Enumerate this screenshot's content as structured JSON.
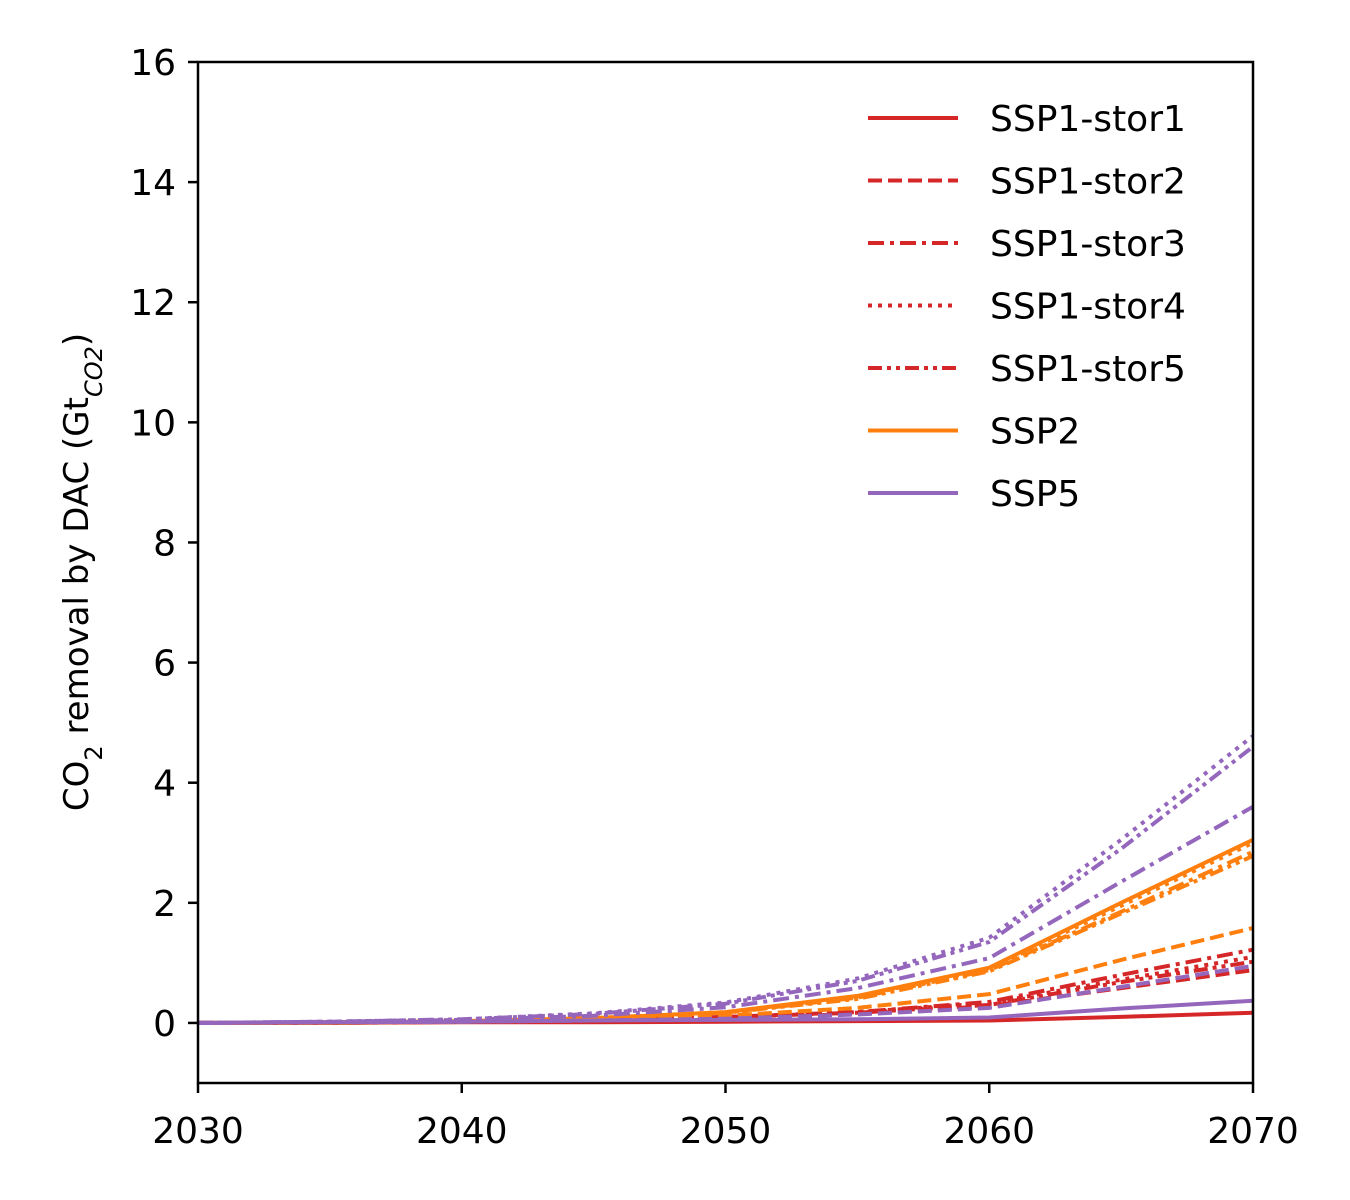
{
  "chart_data": {
    "type": "line",
    "title": "",
    "xlabel": "",
    "ylabel_parts": {
      "main": "CO",
      "sub1": "2",
      "mid": " removal by DAC (Gt",
      "sub2": "CO2",
      "end": ")"
    },
    "xlim": [
      2030,
      2070
    ],
    "ylim": [
      -1,
      16
    ],
    "x_ticks": [
      2030,
      2040,
      2050,
      2060,
      2070
    ],
    "y_ticks": [
      0,
      2,
      4,
      6,
      8,
      10,
      12,
      14,
      16
    ],
    "grid": false,
    "legend_position": "top-right",
    "x": [
      2030,
      2035,
      2040,
      2045,
      2050,
      2055,
      2060,
      2065,
      2070
    ],
    "series": [
      {
        "group": "SSP1",
        "style": "solid",
        "color": "#d62728",
        "name": "SSP1-stor1",
        "values": [
          0.0,
          0.0,
          0.01,
          0.01,
          0.02,
          0.03,
          0.04,
          0.1,
          0.17
        ]
      },
      {
        "group": "SSP1",
        "style": "dashed",
        "color": "#d62728",
        "name": "SSP1-stor2",
        "values": [
          0.0,
          0.0,
          0.02,
          0.04,
          0.08,
          0.15,
          0.28,
          0.58,
          0.88
        ]
      },
      {
        "group": "SSP1",
        "style": "dashdot",
        "color": "#d62728",
        "name": "SSP1-stor3",
        "values": [
          0.0,
          0.0,
          0.02,
          0.05,
          0.1,
          0.18,
          0.35,
          0.8,
          1.22
        ]
      },
      {
        "group": "SSP1",
        "style": "dotted",
        "color": "#d62728",
        "name": "SSP1-stor4",
        "values": [
          0.0,
          0.0,
          0.02,
          0.05,
          0.1,
          0.18,
          0.33,
          0.72,
          1.1
        ]
      },
      {
        "group": "SSP1",
        "style": "dashdotdot",
        "color": "#d62728",
        "name": "SSP1-stor5",
        "values": [
          0.0,
          0.0,
          0.02,
          0.05,
          0.1,
          0.17,
          0.3,
          0.68,
          1.02
        ]
      },
      {
        "group": "SSP2",
        "style": "solid",
        "color": "#ff7f0e",
        "name": "SSP2",
        "values": [
          0.0,
          0.01,
          0.03,
          0.08,
          0.18,
          0.45,
          0.92,
          2.0,
          3.05
        ]
      },
      {
        "group": "SSP2",
        "style": "dashed",
        "color": "#ff7f0e",
        "values": [
          0.0,
          0.0,
          0.02,
          0.05,
          0.12,
          0.25,
          0.48,
          1.05,
          1.58
        ]
      },
      {
        "group": "SSP2",
        "style": "dashdot",
        "color": "#ff7f0e",
        "values": [
          0.0,
          0.01,
          0.03,
          0.08,
          0.17,
          0.42,
          0.88,
          1.85,
          2.85
        ]
      },
      {
        "group": "SSP2",
        "style": "dotted",
        "color": "#ff7f0e",
        "values": [
          0.0,
          0.01,
          0.03,
          0.08,
          0.18,
          0.44,
          0.9,
          1.95,
          3.0
        ]
      },
      {
        "group": "SSP2",
        "style": "dashdotdot",
        "color": "#ff7f0e",
        "values": [
          0.0,
          0.01,
          0.03,
          0.07,
          0.17,
          0.4,
          0.86,
          1.82,
          2.78
        ]
      },
      {
        "group": "SSP5",
        "style": "solid",
        "color": "#9467bd",
        "name": "SSP5",
        "values": [
          0.0,
          0.01,
          0.02,
          0.04,
          0.05,
          0.06,
          0.09,
          0.24,
          0.37
        ]
      },
      {
        "group": "SSP5",
        "style": "dashed",
        "color": "#9467bd",
        "values": [
          0.0,
          0.01,
          0.02,
          0.04,
          0.07,
          0.14,
          0.25,
          0.6,
          0.95
        ]
      },
      {
        "group": "SSP5",
        "style": "dashdot",
        "color": "#9467bd",
        "values": [
          0.0,
          0.02,
          0.05,
          0.12,
          0.26,
          0.58,
          1.08,
          2.35,
          3.6
        ]
      },
      {
        "group": "SSP5",
        "style": "dotted",
        "color": "#9467bd",
        "values": [
          0.0,
          0.02,
          0.06,
          0.16,
          0.34,
          0.74,
          1.42,
          3.05,
          4.78
        ]
      },
      {
        "group": "SSP5",
        "style": "dashdotdot",
        "color": "#9467bd",
        "values": [
          0.0,
          0.02,
          0.06,
          0.15,
          0.32,
          0.7,
          1.35,
          2.9,
          4.6
        ]
      }
    ]
  }
}
